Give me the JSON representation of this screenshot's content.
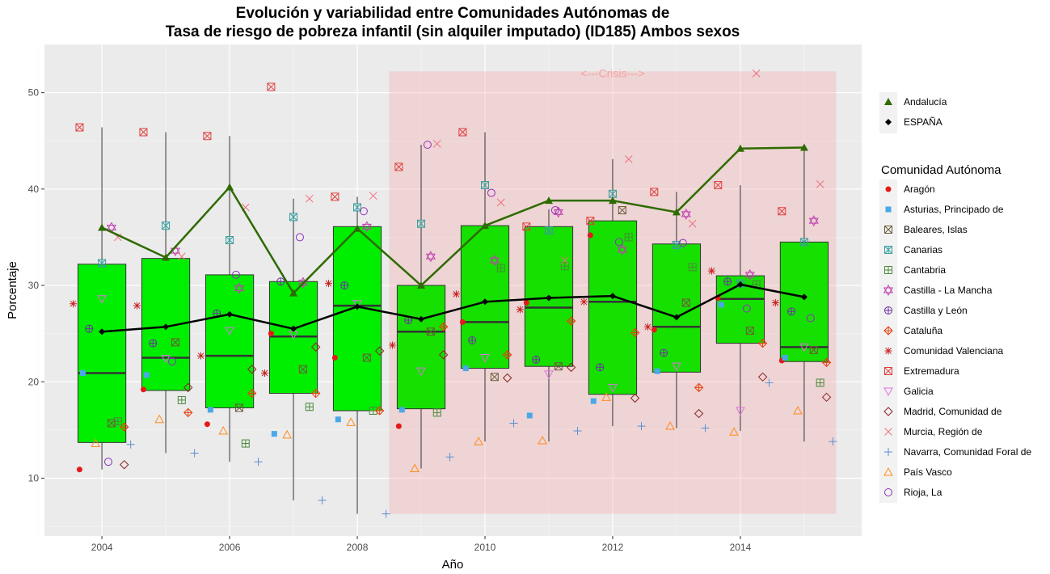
{
  "chart_data": {
    "type": "box",
    "title_line1": "Evolución y variabilidad entre Comunidades Autónomas de",
    "title_line2": "Tasa de riesgo de pobreza infantil (sin alquiler imputado) (ID185) Ambos sexos",
    "xlabel": "Año",
    "ylabel": "Porcentaje",
    "xlim": [
      2003.1,
      2015.9
    ],
    "ylim": [
      4,
      55
    ],
    "x_ticks": [
      2004,
      2006,
      2008,
      2010,
      2012,
      2014
    ],
    "y_ticks": [
      10,
      20,
      30,
      40,
      50
    ],
    "grid": true,
    "crisis": {
      "label": "<---Crisis--->",
      "x_start": 2008.5,
      "x_end": 2015.5,
      "y_min": 6.3,
      "y_max": 52.2,
      "color": "#f4a0a0"
    },
    "years": [
      2004,
      2005,
      2006,
      2007,
      2008,
      2009,
      2010,
      2011,
      2012,
      2013,
      2014,
      2015
    ],
    "boxes": [
      {
        "year": 2004,
        "q1": 13.7,
        "median": 20.9,
        "q3": 32.2,
        "min": 10.9,
        "max": 46.4,
        "fill": "#00ee00"
      },
      {
        "year": 2005,
        "q1": 19.1,
        "median": 22.5,
        "q3": 32.8,
        "min": 12.6,
        "max": 45.9,
        "fill": "#00ee00"
      },
      {
        "year": 2006,
        "q1": 17.3,
        "median": 22.7,
        "q3": 31.1,
        "min": 11.7,
        "max": 45.5,
        "fill": "#00ee00"
      },
      {
        "year": 2007,
        "q1": 18.8,
        "median": 24.7,
        "q3": 30.4,
        "min": 7.7,
        "max": 39.0,
        "fill": "#00ee00"
      },
      {
        "year": 2008,
        "q1": 17.0,
        "median": 27.9,
        "q3": 36.1,
        "min": 6.3,
        "max": 39.2,
        "fill": "#00ee00"
      },
      {
        "year": 2009,
        "q1": 17.2,
        "median": 25.2,
        "q3": 30.0,
        "min": 11.0,
        "max": 44.6,
        "fill": "#16e000"
      },
      {
        "year": 2010,
        "q1": 21.4,
        "median": 26.2,
        "q3": 36.2,
        "min": 13.8,
        "max": 45.9,
        "fill": "#16e000"
      },
      {
        "year": 2011,
        "q1": 21.6,
        "median": 27.7,
        "q3": 36.1,
        "min": 13.8,
        "max": 37.9,
        "fill": "#16e000"
      },
      {
        "year": 2012,
        "q1": 18.7,
        "median": 28.3,
        "q3": 36.7,
        "min": 15.4,
        "max": 43.1,
        "fill": "#16e000"
      },
      {
        "year": 2013,
        "q1": 21.0,
        "median": 25.7,
        "q3": 34.3,
        "min": 15.2,
        "max": 39.7,
        "fill": "#16e000"
      },
      {
        "year": 2014,
        "q1": 24.0,
        "median": 28.6,
        "q3": 31.0,
        "min": 14.9,
        "max": 40.4,
        "fill": "#16e000"
      },
      {
        "year": 2015,
        "q1": 22.1,
        "median": 23.6,
        "q3": 34.5,
        "min": 13.8,
        "max": 44.4,
        "fill": "#16e000"
      }
    ],
    "lines": [
      {
        "name": "Andalucía",
        "color": "#2e6b00",
        "marker": "triangle",
        "values": [
          36.0,
          32.9,
          40.2,
          29.2,
          35.9,
          30.0,
          36.2,
          38.8,
          38.8,
          37.6,
          44.2,
          44.3
        ]
      },
      {
        "name": "ESPAÑA",
        "color": "#000000",
        "marker": "diamond",
        "values": [
          25.2,
          25.7,
          27.0,
          25.5,
          27.8,
          26.5,
          28.3,
          28.7,
          28.9,
          26.7,
          30.1,
          28.8
        ]
      }
    ],
    "communities": [
      {
        "name": "Aragón",
        "color": "#e31a1c",
        "shape": "dot",
        "offset": -0.35,
        "values": [
          10.9,
          19.2,
          15.6,
          25.0,
          22.5,
          15.4,
          26.2,
          28.2,
          35.2,
          25.4,
          28.7,
          22.2
        ]
      },
      {
        "name": "Asturias, Principado de",
        "color": "#4aa8e8",
        "shape": "square",
        "offset": -0.3,
        "values": [
          20.9,
          20.7,
          17.1,
          14.6,
          16.1,
          17.1,
          21.4,
          16.5,
          18.0,
          21.1,
          28.0,
          22.5
        ]
      },
      {
        "name": "Baleares, Islas",
        "color": "#6b5a3a",
        "shape": "square-x",
        "offset": 0.15,
        "values": [
          15.7,
          24.1,
          17.3,
          21.3,
          22.5,
          25.2,
          20.5,
          21.6,
          37.8,
          28.2,
          25.3,
          23.3
        ]
      },
      {
        "name": "Canarias",
        "color": "#3a9e9e",
        "shape": "square-asterisk",
        "offset": 0.0,
        "values": [
          32.3,
          36.2,
          34.7,
          37.1,
          38.1,
          36.4,
          40.4,
          35.7,
          39.5,
          34.2,
          30.2,
          34.5
        ]
      },
      {
        "name": "Cantabria",
        "color": "#4a8a3a",
        "shape": "square-plus",
        "offset": 0.25,
        "values": [
          15.9,
          18.1,
          13.6,
          17.4,
          17.0,
          16.8,
          31.8,
          32.0,
          35.0,
          31.9,
          30.1,
          19.9
        ]
      },
      {
        "name": "Castilla - La Mancha",
        "color": "#c040b0",
        "shape": "star6",
        "offset": 0.15,
        "values": [
          36.0,
          33.6,
          29.7,
          30.3,
          36.1,
          33.0,
          32.6,
          37.6,
          33.7,
          37.4,
          31.1,
          36.7
        ]
      },
      {
        "name": "Castilla y León",
        "color": "#6a30a0",
        "shape": "circle-plus",
        "offset": -0.2,
        "values": [
          25.5,
          24.0,
          27.1,
          30.4,
          30.0,
          26.4,
          24.3,
          22.3,
          21.5,
          23.0,
          30.4,
          27.3
        ]
      },
      {
        "name": "Cataluña",
        "color": "#e84010",
        "shape": "circle-plus2",
        "offset": 0.35,
        "values": [
          15.3,
          16.8,
          18.8,
          18.8,
          17.0,
          25.7,
          22.8,
          26.3,
          25.1,
          19.4,
          24.0,
          22.0
        ]
      },
      {
        "name": "Comunidad Valenciana",
        "color": "#c82020",
        "shape": "asterisk",
        "offset": -0.45,
        "values": [
          28.1,
          27.9,
          22.7,
          20.9,
          30.2,
          23.8,
          29.1,
          27.5,
          28.3,
          25.7,
          31.5,
          28.2
        ]
      },
      {
        "name": "Extremadura",
        "color": "#e04040",
        "shape": "square-x",
        "offset": -0.35,
        "values": [
          46.4,
          45.9,
          45.5,
          50.6,
          39.2,
          42.3,
          45.9,
          36.1,
          36.7,
          39.7,
          40.4,
          37.7
        ]
      },
      {
        "name": "Galicia",
        "color": "#e070e0",
        "shape": "triangle-down",
        "offset": 0.0,
        "values": [
          28.6,
          22.4,
          25.3,
          24.9,
          28.1,
          21.1,
          22.5,
          20.8,
          19.4,
          21.6,
          17.0,
          23.6
        ]
      },
      {
        "name": "Madrid, Comunidad de",
        "color": "#8b2323",
        "shape": "diamond-open",
        "offset": 0.35,
        "values": [
          11.4,
          19.4,
          21.3,
          23.6,
          23.2,
          22.8,
          20.4,
          21.5,
          18.3,
          16.7,
          20.5,
          18.4
        ]
      },
      {
        "name": "Murcia, Región de",
        "color": "#f07080",
        "shape": "cross-x",
        "offset": 0.25,
        "values": [
          35.0,
          33.0,
          38.1,
          39.0,
          39.3,
          44.7,
          38.6,
          32.6,
          43.1,
          36.4,
          52.0,
          40.5
        ]
      },
      {
        "name": "Navarra, Comunidad Foral de",
        "color": "#5a90d0",
        "shape": "plus",
        "offset": 0.45,
        "values": [
          13.5,
          12.6,
          11.7,
          7.7,
          6.3,
          12.2,
          15.7,
          14.9,
          15.4,
          15.2,
          19.9,
          13.8
        ]
      },
      {
        "name": "País Vasco",
        "color": "#ff8c1a",
        "shape": "triangle-open",
        "offset": -0.1,
        "values": [
          13.6,
          16.1,
          14.9,
          14.5,
          15.8,
          11.0,
          13.8,
          13.9,
          18.4,
          15.4,
          14.8,
          17.0
        ]
      },
      {
        "name": "Rioja, La",
        "color": "#9030c0",
        "shape": "circle-open",
        "offset": 0.1,
        "values": [
          11.7,
          22.1,
          31.1,
          35.0,
          37.7,
          44.6,
          39.6,
          37.8,
          34.5,
          34.4,
          27.6,
          26.6
        ]
      }
    ],
    "legend_title": "Comunidad Autónoma"
  }
}
